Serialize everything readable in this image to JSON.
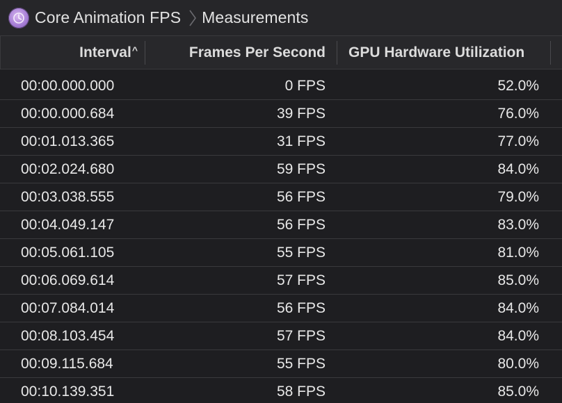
{
  "breadcrumb": {
    "instrument": "Core Animation FPS",
    "view": "Measurements"
  },
  "columns": [
    {
      "label": "Interval",
      "sorted": "ascending",
      "sort_glyph": "^"
    },
    {
      "label": "Frames Per Second"
    },
    {
      "label": "GPU Hardware Utilization"
    }
  ],
  "rows": [
    {
      "interval": "00:00.000.000",
      "fps": "0 FPS",
      "gpu": "52.0%"
    },
    {
      "interval": "00:00.000.684",
      "fps": "39 FPS",
      "gpu": "76.0%"
    },
    {
      "interval": "00:01.013.365",
      "fps": "31 FPS",
      "gpu": "77.0%"
    },
    {
      "interval": "00:02.024.680",
      "fps": "59 FPS",
      "gpu": "84.0%"
    },
    {
      "interval": "00:03.038.555",
      "fps": "56 FPS",
      "gpu": "79.0%"
    },
    {
      "interval": "00:04.049.147",
      "fps": "56 FPS",
      "gpu": "83.0%"
    },
    {
      "interval": "00:05.061.105",
      "fps": "55 FPS",
      "gpu": "81.0%"
    },
    {
      "interval": "00:06.069.614",
      "fps": "57 FPS",
      "gpu": "85.0%"
    },
    {
      "interval": "00:07.084.014",
      "fps": "56 FPS",
      "gpu": "84.0%"
    },
    {
      "interval": "00:08.103.454",
      "fps": "57 FPS",
      "gpu": "84.0%"
    },
    {
      "interval": "00:09.115.684",
      "fps": "55 FPS",
      "gpu": "80.0%"
    },
    {
      "interval": "00:10.139.351",
      "fps": "58 FPS",
      "gpu": "85.0%"
    }
  ],
  "colors": {
    "background": "#1e1e21",
    "header": "#28282b",
    "text": "#e8e8e8",
    "instrument_icon": "#a77fd6"
  },
  "icons": {
    "instrument": "core-animation-instrument-icon",
    "separator": "chevron-right-icon",
    "sort": "sort-ascending-icon"
  }
}
